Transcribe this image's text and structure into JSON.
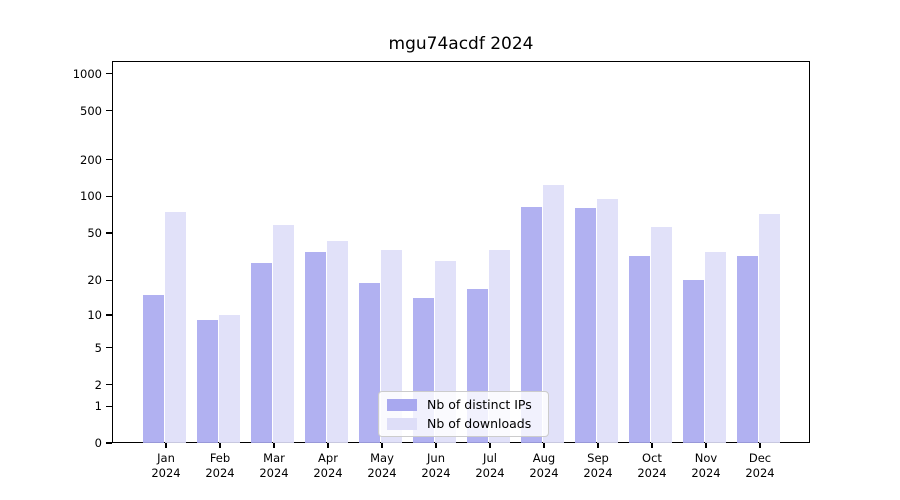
{
  "title": "mgu74acdf 2024",
  "chart_data": {
    "type": "bar",
    "title": "mgu74acdf 2024",
    "categories": [
      "Jan",
      "Feb",
      "Mar",
      "Apr",
      "May",
      "Jun",
      "Jul",
      "Aug",
      "Sep",
      "Oct",
      "Nov",
      "Dec"
    ],
    "category_year": "2024",
    "series": [
      {
        "name": "Nb of distinct IPs",
        "color": "#a8a8ef",
        "values": [
          15,
          9,
          28,
          35,
          19,
          14,
          17,
          82,
          80,
          32,
          20,
          32
        ]
      },
      {
        "name": "Nb of downloads",
        "color": "#dedef8",
        "values": [
          74,
          10,
          58,
          43,
          36,
          29,
          36,
          123,
          95,
          56,
          35,
          72
        ]
      }
    ],
    "xlabel": "",
    "ylabel": "",
    "y_scale": "log1p",
    "y_tick_values": [
      0,
      1,
      2,
      5,
      10,
      20,
      50,
      100,
      200,
      500,
      1000
    ],
    "y_minor_gridline_values": [
      2,
      3,
      4,
      5,
      6,
      7,
      8,
      9,
      20,
      30,
      40,
      50,
      60,
      70,
      80,
      90,
      200,
      300,
      400,
      500,
      600,
      700,
      800,
      900
    ],
    "y_major_gridline_values": [
      1,
      10,
      100,
      1000
    ],
    "ylim": [
      0,
      1000
    ],
    "grid": "on",
    "legend_position": "inside-bottom-center",
    "colors": {
      "major_grid": "#c3c3c3",
      "minor_grid": "#ededed",
      "axis": "#000000",
      "background": "#ffffff"
    }
  }
}
